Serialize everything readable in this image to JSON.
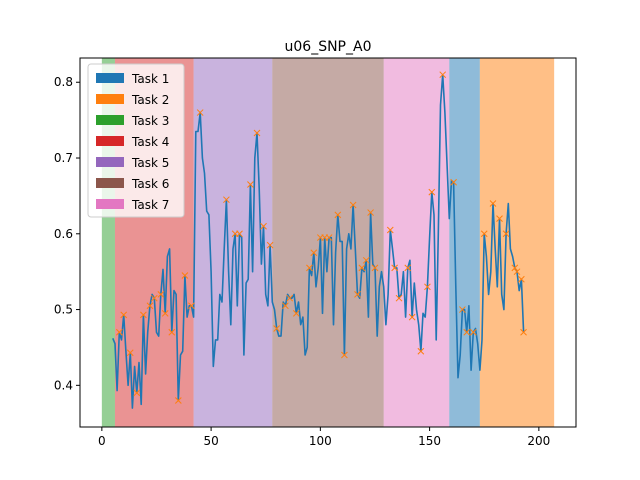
{
  "chart_data": {
    "type": "line",
    "title": "u06_SNP_A0",
    "xlabel": "",
    "ylabel": "",
    "xlim": [
      -10,
      217
    ],
    "ylim": [
      0.345,
      0.832
    ],
    "x_ticks": [
      0,
      50,
      100,
      150,
      200
    ],
    "y_ticks": [
      0.4,
      0.5,
      0.6,
      0.7,
      0.8
    ],
    "grid": false,
    "legend_placement": "upper-left",
    "legend": [
      {
        "label": "Task 1",
        "color": "#1f77b4"
      },
      {
        "label": "Task 2",
        "color": "#ff7f0e"
      },
      {
        "label": "Task 3",
        "color": "#2ca02c"
      },
      {
        "label": "Task 4",
        "color": "#d62728"
      },
      {
        "label": "Task 5",
        "color": "#9467bd"
      },
      {
        "label": "Task 6",
        "color": "#8c564b"
      },
      {
        "label": "Task 7",
        "color": "#e377c2"
      }
    ],
    "task_regions": [
      {
        "task": "Task 3",
        "start": 0,
        "end": 6,
        "color": "#2ca02c"
      },
      {
        "task": "Task 4",
        "start": 6,
        "end": 42,
        "color": "#d62728"
      },
      {
        "task": "Task 5",
        "start": 42,
        "end": 78,
        "color": "#9467bd"
      },
      {
        "task": "Task 6",
        "start": 78,
        "end": 129,
        "color": "#8c564b"
      },
      {
        "task": "Task 7",
        "start": 129,
        "end": 159,
        "color": "#e377c2"
      },
      {
        "task": "Task 1",
        "start": 159,
        "end": 173,
        "color": "#1f77b4"
      },
      {
        "task": "Task 2",
        "start": 173,
        "end": 207,
        "color": "#ff7f0e"
      }
    ],
    "series": [
      {
        "color": "#1f77b4",
        "points": [
          [
            5,
            0.462
          ],
          [
            6,
            0.455
          ],
          [
            7,
            0.393
          ],
          [
            8,
            0.47
          ],
          [
            9,
            0.46
          ],
          [
            10,
            0.493
          ],
          [
            11,
            0.445
          ],
          [
            12,
            0.4
          ],
          [
            13,
            0.443
          ],
          [
            14,
            0.37
          ],
          [
            15,
            0.425
          ],
          [
            16,
            0.39
          ],
          [
            17,
            0.43
          ],
          [
            18,
            0.375
          ],
          [
            19,
            0.493
          ],
          [
            20,
            0.415
          ],
          [
            21,
            0.47
          ],
          [
            22,
            0.505
          ],
          [
            23,
            0.52
          ],
          [
            24,
            0.515
          ],
          [
            25,
            0.47
          ],
          [
            26,
            0.465
          ],
          [
            27,
            0.52
          ],
          [
            28,
            0.553
          ],
          [
            29,
            0.495
          ],
          [
            30,
            0.57
          ],
          [
            31,
            0.58
          ],
          [
            32,
            0.47
          ],
          [
            33,
            0.525
          ],
          [
            34,
            0.52
          ],
          [
            35,
            0.38
          ],
          [
            36,
            0.44
          ],
          [
            37,
            0.445
          ],
          [
            38,
            0.545
          ],
          [
            39,
            0.49
          ],
          [
            40,
            0.505
          ],
          [
            41,
            0.505
          ],
          [
            42,
            0.49
          ],
          [
            43,
            0.735
          ],
          [
            44,
            0.735
          ],
          [
            45,
            0.76
          ],
          [
            46,
            0.7
          ],
          [
            47,
            0.68
          ],
          [
            48,
            0.63
          ],
          [
            49,
            0.625
          ],
          [
            50,
            0.55
          ],
          [
            51,
            0.425
          ],
          [
            52,
            0.46
          ],
          [
            53,
            0.46
          ],
          [
            54,
            0.52
          ],
          [
            55,
            0.51
          ],
          [
            56,
            0.58
          ],
          [
            57,
            0.645
          ],
          [
            58,
            0.55
          ],
          [
            59,
            0.48
          ],
          [
            60,
            0.58
          ],
          [
            61,
            0.6
          ],
          [
            62,
            0.505
          ],
          [
            63,
            0.6
          ],
          [
            64,
            0.595
          ],
          [
            65,
            0.44
          ],
          [
            66,
            0.535
          ],
          [
            67,
            0.54
          ],
          [
            68,
            0.665
          ],
          [
            69,
            0.55
          ],
          [
            70,
            0.7
          ],
          [
            71,
            0.733
          ],
          [
            72,
            0.66
          ],
          [
            73,
            0.56
          ],
          [
            74,
            0.61
          ],
          [
            75,
            0.52
          ],
          [
            76,
            0.505
          ],
          [
            77,
            0.585
          ],
          [
            78,
            0.51
          ],
          [
            79,
            0.5
          ],
          [
            80,
            0.475
          ],
          [
            81,
            0.465
          ],
          [
            82,
            0.465
          ],
          [
            83,
            0.51
          ],
          [
            84,
            0.505
          ],
          [
            85,
            0.52
          ],
          [
            86,
            0.515
          ],
          [
            87,
            0.515
          ],
          [
            88,
            0.52
          ],
          [
            89,
            0.495
          ],
          [
            90,
            0.51
          ],
          [
            91,
            0.48
          ],
          [
            92,
            0.49
          ],
          [
            93,
            0.44
          ],
          [
            94,
            0.45
          ],
          [
            95,
            0.555
          ],
          [
            96,
            0.545
          ],
          [
            97,
            0.575
          ],
          [
            98,
            0.53
          ],
          [
            99,
            0.555
          ],
          [
            100,
            0.595
          ],
          [
            101,
            0.495
          ],
          [
            102,
            0.595
          ],
          [
            103,
            0.55
          ],
          [
            104,
            0.595
          ],
          [
            105,
            0.595
          ],
          [
            106,
            0.48
          ],
          [
            107,
            0.575
          ],
          [
            108,
            0.625
          ],
          [
            109,
            0.59
          ],
          [
            110,
            0.59
          ],
          [
            111,
            0.44
          ],
          [
            112,
            0.58
          ],
          [
            113,
            0.6
          ],
          [
            114,
            0.58
          ],
          [
            115,
            0.638
          ],
          [
            116,
            0.58
          ],
          [
            117,
            0.52
          ],
          [
            118,
            0.515
          ],
          [
            119,
            0.555
          ],
          [
            120,
            0.55
          ],
          [
            121,
            0.565
          ],
          [
            122,
            0.49
          ],
          [
            123,
            0.628
          ],
          [
            124,
            0.56
          ],
          [
            125,
            0.555
          ],
          [
            126,
            0.465
          ],
          [
            127,
            0.53
          ],
          [
            128,
            0.55
          ],
          [
            129,
            0.53
          ],
          [
            130,
            0.48
          ],
          [
            131,
            0.52
          ],
          [
            132,
            0.605
          ],
          [
            133,
            0.58
          ],
          [
            134,
            0.555
          ],
          [
            135,
            0.555
          ],
          [
            136,
            0.515
          ],
          [
            137,
            0.52
          ],
          [
            138,
            0.55
          ],
          [
            139,
            0.49
          ],
          [
            140,
            0.555
          ],
          [
            141,
            0.565
          ],
          [
            142,
            0.49
          ],
          [
            143,
            0.535
          ],
          [
            144,
            0.5
          ],
          [
            145,
            0.48
          ],
          [
            146,
            0.445
          ],
          [
            147,
            0.495
          ],
          [
            148,
            0.49
          ],
          [
            149,
            0.53
          ],
          [
            150,
            0.595
          ],
          [
            151,
            0.655
          ],
          [
            152,
            0.625
          ],
          [
            153,
            0.46
          ],
          [
            154,
            0.6
          ],
          [
            155,
            0.77
          ],
          [
            156,
            0.81
          ],
          [
            157,
            0.76
          ],
          [
            158,
            0.69
          ],
          [
            159,
            0.62
          ],
          [
            160,
            0.67
          ],
          [
            161,
            0.668
          ],
          [
            162,
            0.53
          ],
          [
            163,
            0.41
          ],
          [
            164,
            0.44
          ],
          [
            165,
            0.5
          ],
          [
            166,
            0.5
          ],
          [
            167,
            0.47
          ],
          [
            168,
            0.505
          ],
          [
            169,
            0.42
          ],
          [
            170,
            0.47
          ],
          [
            171,
            0.475
          ],
          [
            172,
            0.455
          ],
          [
            173,
            0.42
          ],
          [
            174,
            0.46
          ],
          [
            175,
            0.6
          ],
          [
            176,
            0.57
          ],
          [
            177,
            0.52
          ],
          [
            178,
            0.55
          ],
          [
            179,
            0.64
          ],
          [
            180,
            0.58
          ],
          [
            181,
            0.53
          ],
          [
            182,
            0.62
          ],
          [
            183,
            0.52
          ],
          [
            184,
            0.5
          ],
          [
            185,
            0.6
          ],
          [
            186,
            0.64
          ],
          [
            187,
            0.58
          ],
          [
            188,
            0.57
          ],
          [
            189,
            0.555
          ],
          [
            190,
            0.55
          ],
          [
            191,
            0.525
          ],
          [
            192,
            0.54
          ],
          [
            193,
            0.47
          ]
        ],
        "marker_color": "#ff7f0e",
        "marked_x": [
          8,
          10,
          13,
          16,
          19,
          22,
          24,
          27,
          29,
          32,
          35,
          38,
          41,
          45,
          57,
          61,
          63,
          68,
          71,
          74,
          77,
          80,
          84,
          86,
          89,
          95,
          97,
          100,
          102,
          104,
          108,
          111,
          115,
          117,
          119,
          121,
          123,
          125,
          132,
          134,
          136,
          140,
          142,
          146,
          149,
          151,
          156,
          161,
          165,
          167,
          170,
          175,
          179,
          182,
          185,
          189,
          190,
          192,
          193
        ]
      }
    ]
  }
}
